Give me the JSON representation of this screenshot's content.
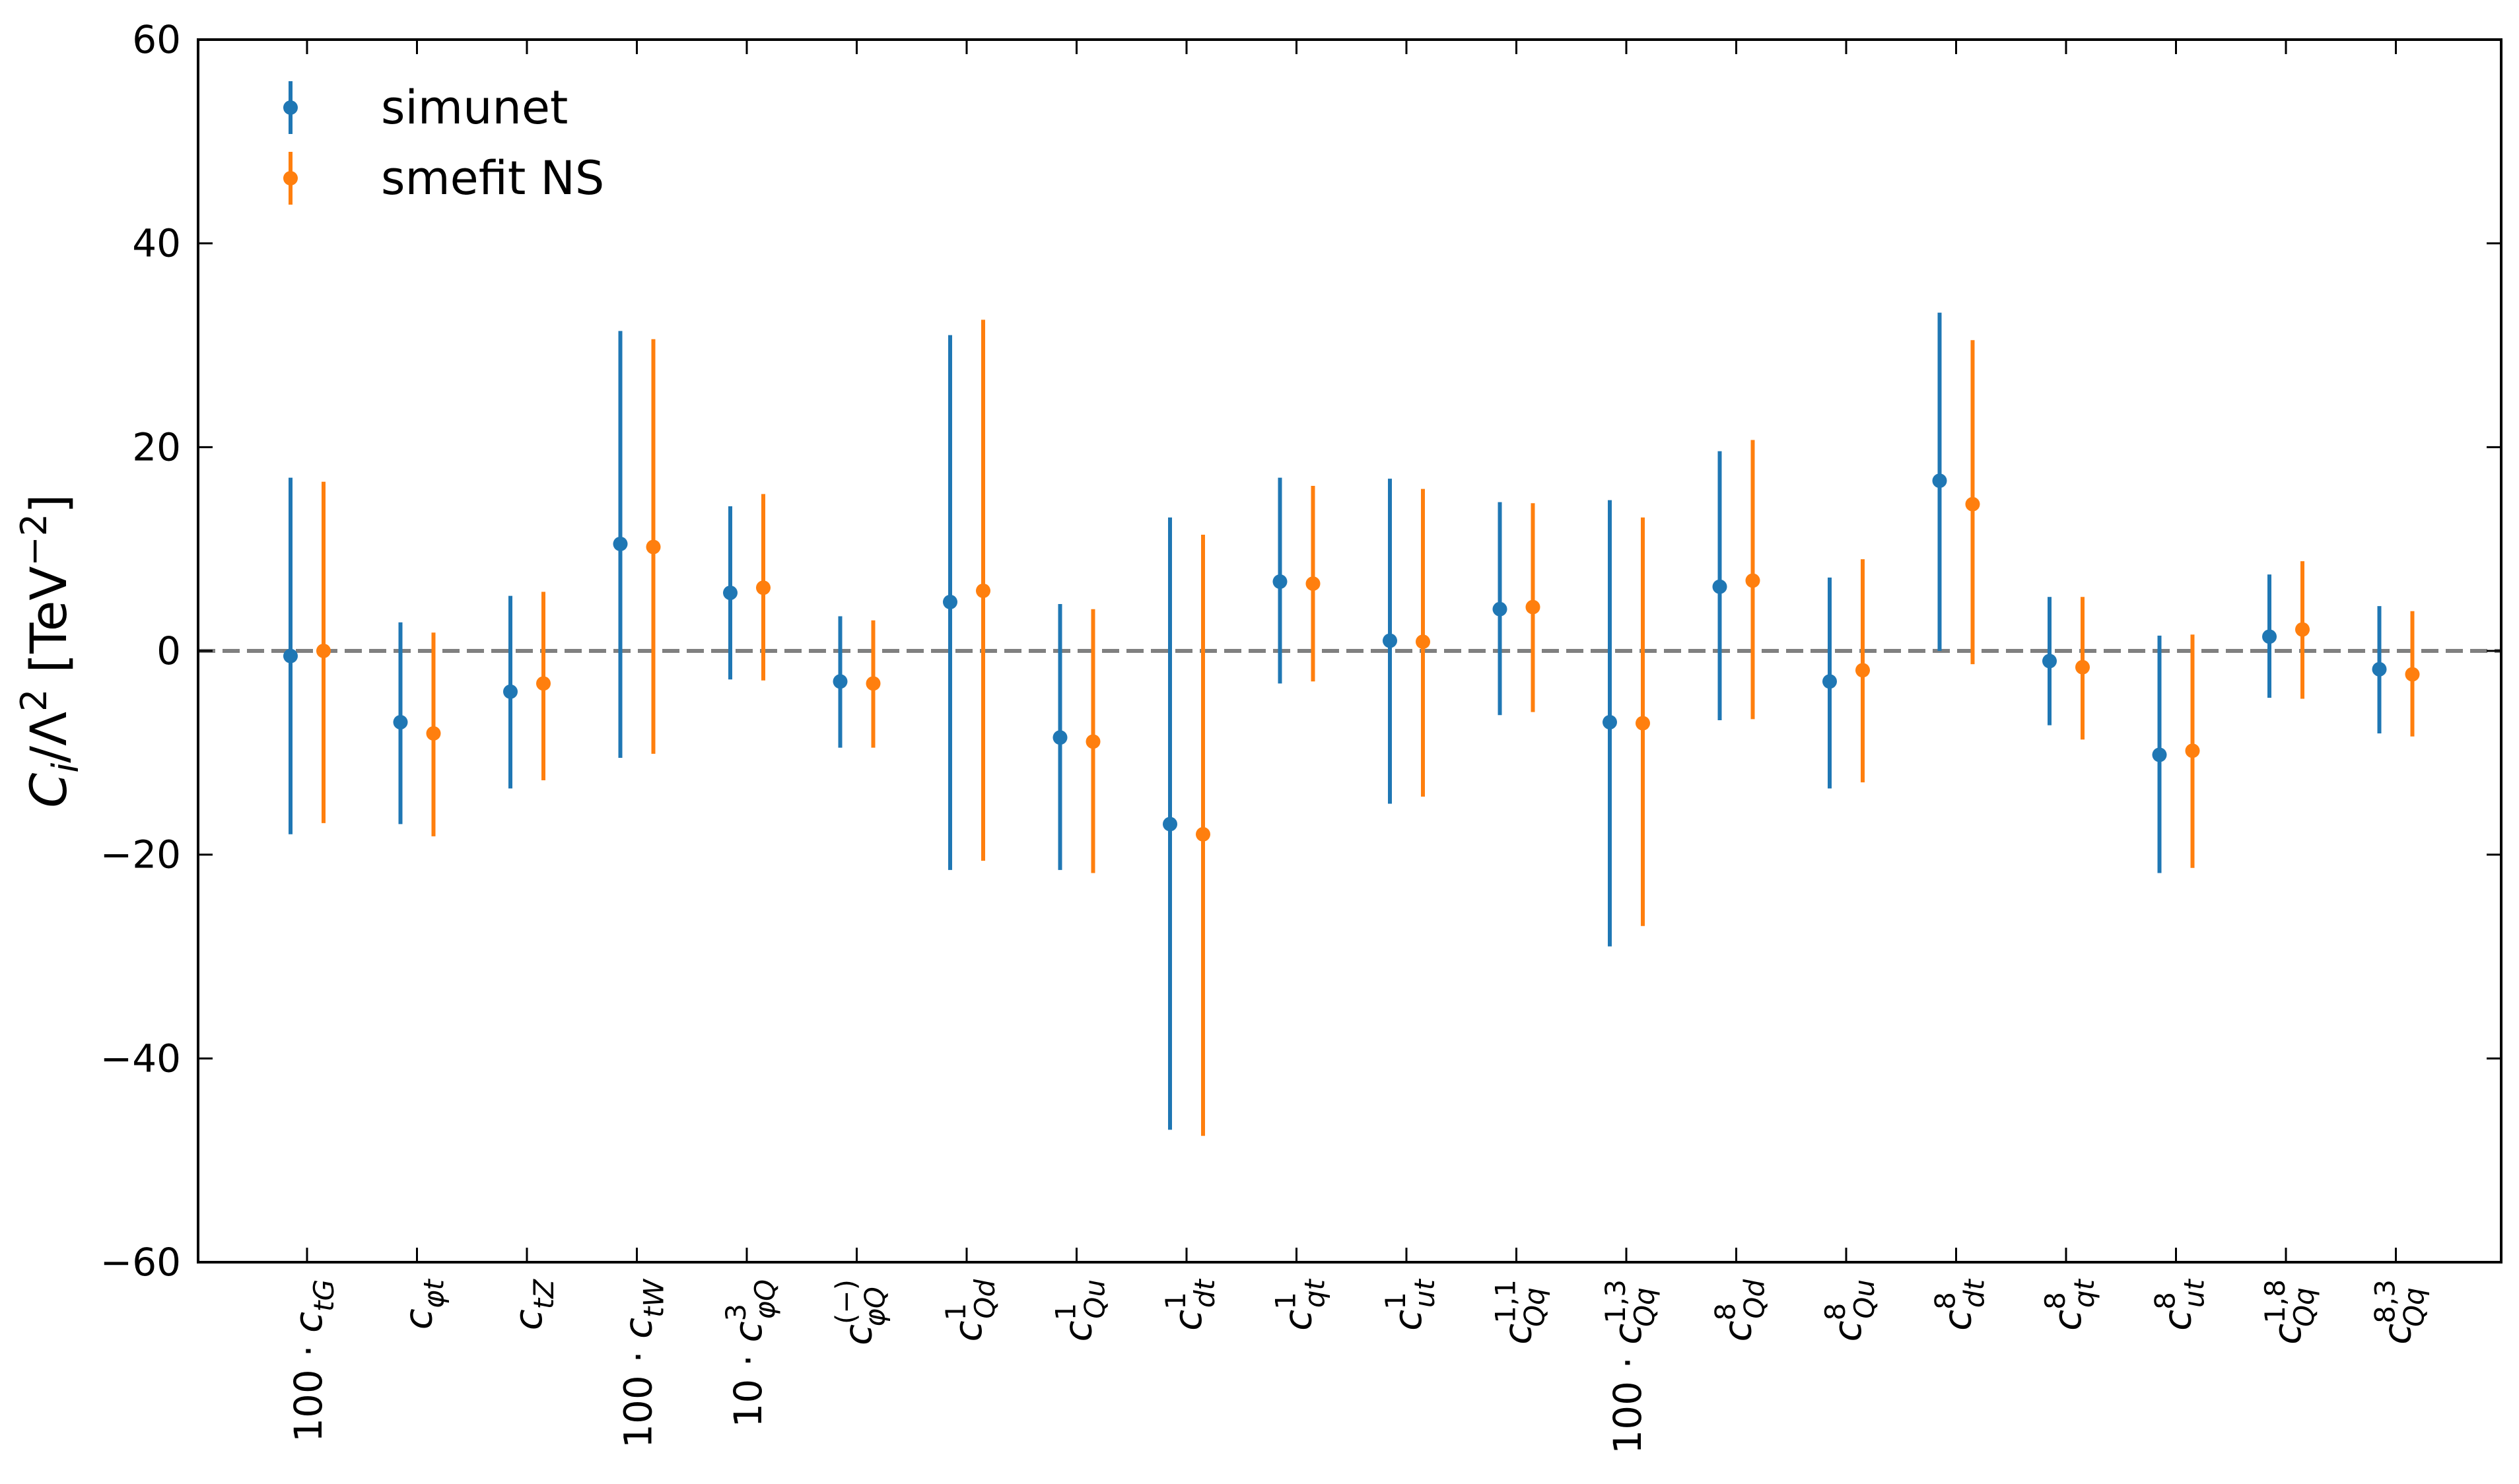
{
  "chart_data": {
    "type": "errorbar",
    "ylabel": "C_i/Λ^2 [TeV^-2]",
    "ylim": [
      -60,
      60
    ],
    "yticks": [
      -60,
      -40,
      -20,
      0,
      20,
      40,
      60
    ],
    "ytick_labels": [
      "−60",
      "−40",
      "−20",
      "0",
      "20",
      "40",
      "60"
    ],
    "reference_line": 0,
    "legend_position": "top-left",
    "colors": {
      "simunet": "#1f77b4",
      "smefit": "#ff7f0e",
      "reference": "#808080"
    },
    "categories": [
      {
        "prefix": "100 ·",
        "base": "c",
        "sub": "tG",
        "sup": ""
      },
      {
        "prefix": "",
        "base": "c",
        "sub": "φt",
        "sup": ""
      },
      {
        "prefix": "",
        "base": "c",
        "sub": "tZ",
        "sup": ""
      },
      {
        "prefix": "100 ·",
        "base": "c",
        "sub": "tW",
        "sup": ""
      },
      {
        "prefix": "10 ·",
        "base": "c",
        "sub": "φQ",
        "sup": "3"
      },
      {
        "prefix": "",
        "base": "c",
        "sub": "φQ",
        "sup": "(−)"
      },
      {
        "prefix": "",
        "base": "c",
        "sub": "Qd",
        "sup": "1"
      },
      {
        "prefix": "",
        "base": "c",
        "sub": "Qu",
        "sup": "1"
      },
      {
        "prefix": "",
        "base": "c",
        "sub": "dt",
        "sup": "1"
      },
      {
        "prefix": "",
        "base": "c",
        "sub": "qt",
        "sup": "1"
      },
      {
        "prefix": "",
        "base": "c",
        "sub": "ut",
        "sup": "1"
      },
      {
        "prefix": "",
        "base": "c",
        "sub": "Qq",
        "sup": "1,1"
      },
      {
        "prefix": "100 ·",
        "base": "c",
        "sub": "Qq",
        "sup": "1,3"
      },
      {
        "prefix": "",
        "base": "c",
        "sub": "Qd",
        "sup": "8"
      },
      {
        "prefix": "",
        "base": "c",
        "sub": "Qu",
        "sup": "8"
      },
      {
        "prefix": "",
        "base": "c",
        "sub": "dt",
        "sup": "8"
      },
      {
        "prefix": "",
        "base": "c",
        "sub": "qt",
        "sup": "8"
      },
      {
        "prefix": "",
        "base": "c",
        "sub": "ut",
        "sup": "8"
      },
      {
        "prefix": "",
        "base": "c",
        "sub": "Qq",
        "sup": "1,8"
      },
      {
        "prefix": "",
        "base": "c",
        "sub": "Qq",
        "sup": "8,3"
      }
    ],
    "series": [
      {
        "name": "simunet",
        "central": [
          -0.5,
          -7.0,
          -4.0,
          10.5,
          5.7,
          -3.0,
          4.8,
          -8.5,
          -17.0,
          6.8,
          1.0,
          4.1,
          -7.0,
          6.3,
          -3.0,
          16.7,
          -1.0,
          -10.2,
          1.4,
          -1.8
        ],
        "lower": [
          -18.0,
          -17.0,
          -13.5,
          -10.5,
          -2.8,
          -9.5,
          -21.5,
          -21.5,
          -47.0,
          -3.2,
          -15.0,
          -6.3,
          -29.0,
          -6.8,
          -13.5,
          0.0,
          -7.3,
          -21.8,
          -4.6,
          -8.1
        ],
        "upper": [
          17.0,
          2.8,
          5.4,
          31.4,
          14.2,
          3.4,
          31.0,
          4.6,
          13.1,
          17.0,
          16.9,
          14.6,
          14.8,
          19.6,
          7.2,
          33.2,
          5.3,
          1.5,
          7.5,
          4.4
        ]
      },
      {
        "name": "smefit NS",
        "central": [
          0.0,
          -8.1,
          -3.2,
          10.2,
          6.2,
          -3.2,
          5.9,
          -8.9,
          -18.0,
          6.6,
          0.9,
          4.3,
          -7.1,
          6.9,
          -1.9,
          14.4,
          -1.6,
          -9.8,
          2.1,
          -2.3
        ],
        "lower": [
          -16.9,
          -18.2,
          -12.7,
          -10.1,
          -2.9,
          -9.5,
          -20.6,
          -21.8,
          -47.6,
          -3.0,
          -14.3,
          -6.0,
          -27.0,
          -6.7,
          -12.9,
          -1.3,
          -8.7,
          -21.3,
          -4.7,
          -8.4
        ],
        "upper": [
          16.6,
          1.8,
          5.8,
          30.6,
          15.4,
          3.0,
          32.5,
          4.1,
          11.4,
          16.2,
          15.9,
          14.5,
          13.1,
          20.7,
          9.0,
          30.5,
          5.3,
          1.6,
          8.8,
          3.9
        ]
      }
    ]
  }
}
